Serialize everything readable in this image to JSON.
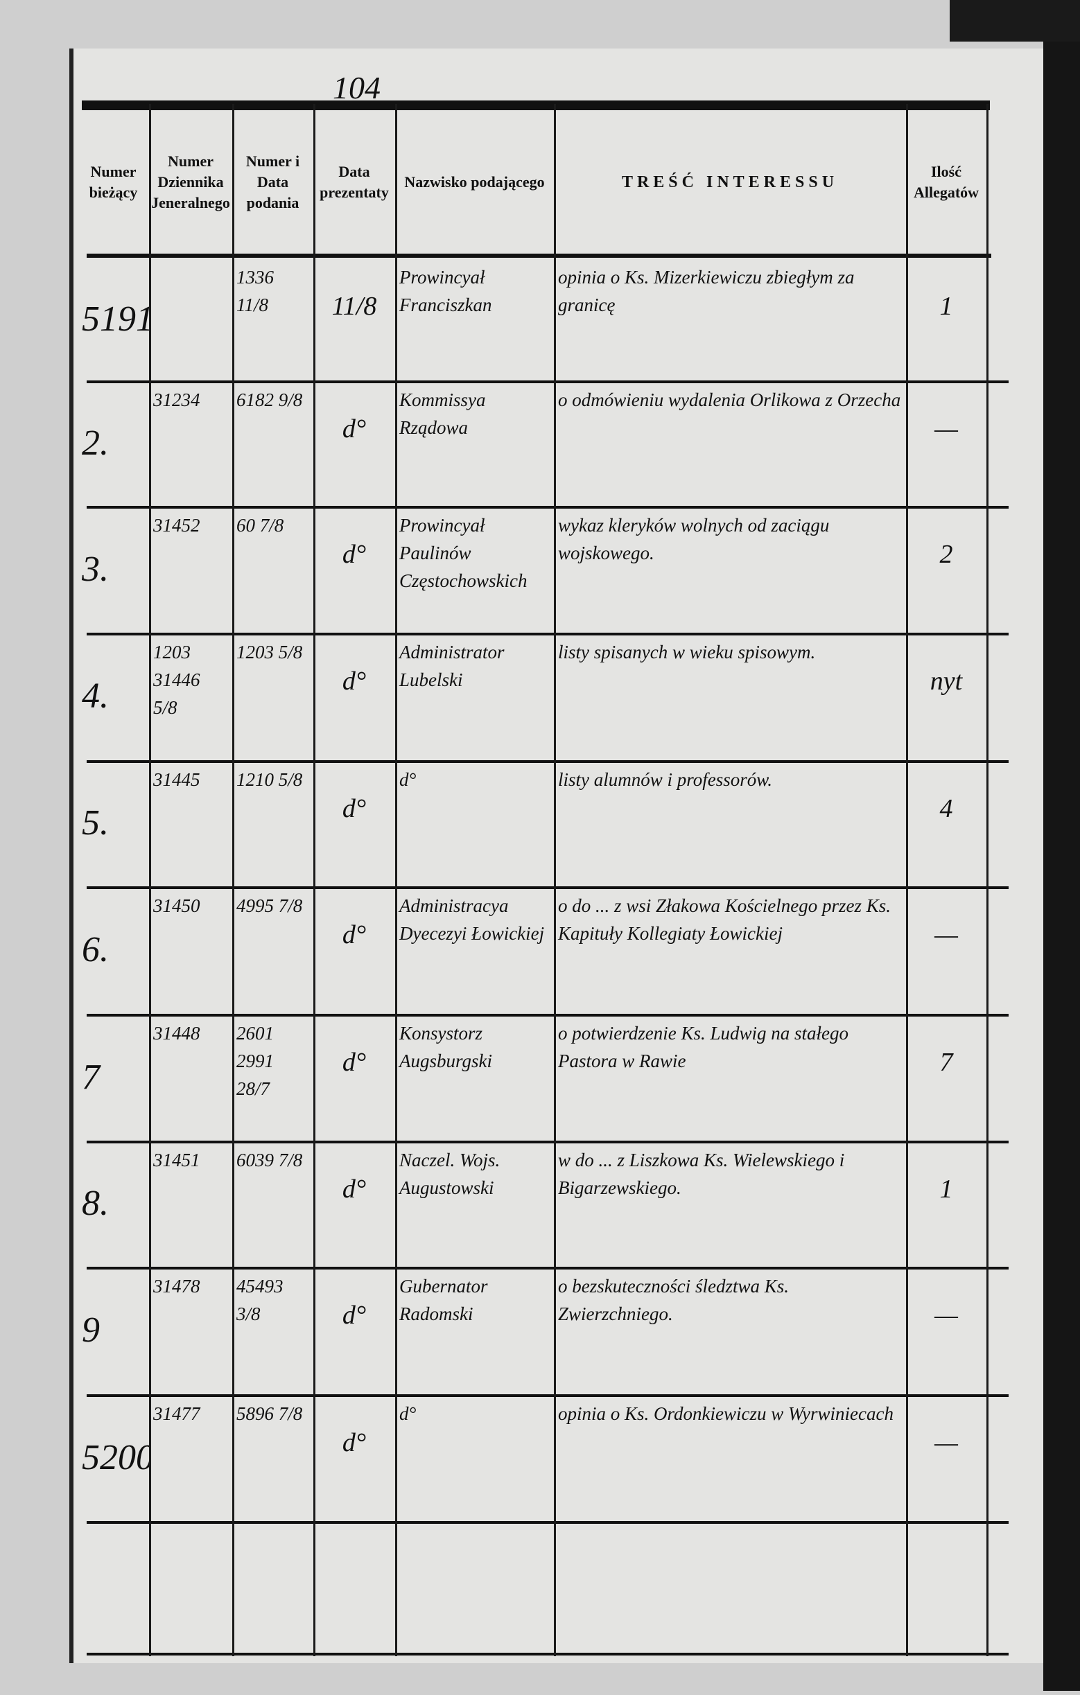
{
  "page_number": "104",
  "headers": [
    "Numer bieżący",
    "Numer Dziennika Jeneralnego",
    "Numer i Data podania",
    "Data prezentaty",
    "Nazwisko podającego",
    "TREŚĆ INTERESSU",
    "Ilość Allegatów"
  ],
  "rows": [
    {
      "numer": "5191.",
      "dziennik": "",
      "podanie": "1336 11/8",
      "prezentata": "11/8",
      "nazwisko": "Prowincyał Franciszkan",
      "tresc": "opinia o Ks. Mizerkiewiczu zbiegłym za granicę",
      "allegaty": "1"
    },
    {
      "numer": "2.",
      "dziennik": "31234",
      "podanie": "6182 9/8",
      "prezentata": "d°",
      "nazwisko": "Kommissya Rządowa",
      "tresc": "o odmówieniu wydalenia Orlikowa z Orzecha",
      "allegaty": "—"
    },
    {
      "numer": "3.",
      "dziennik": "31452",
      "podanie": "60 7/8",
      "prezentata": "d°",
      "nazwisko": "Prowincyał Paulinów Częstochowskich",
      "tresc": "wykaz kleryków wolnych od zaciągu wojskowego.",
      "allegaty": "2"
    },
    {
      "numer": "4.",
      "dziennik": "1203 31446 5/8",
      "podanie": "1203 5/8",
      "prezentata": "d°",
      "nazwisko": "Administrator Lubelski",
      "tresc": "listy spisanych w wieku spisowym.",
      "allegaty": "nyt"
    },
    {
      "numer": "5.",
      "dziennik": "31445",
      "podanie": "1210 5/8",
      "prezentata": "d°",
      "nazwisko": "d°",
      "tresc": "listy alumnów i professorów.",
      "allegaty": "4"
    },
    {
      "numer": "6.",
      "dziennik": "31450",
      "podanie": "4995 7/8",
      "prezentata": "d°",
      "nazwisko": "Administracya Dyecezyi Łowickiej",
      "tresc": "o do ... z wsi Złakowa Kościelnego przez Ks. Kapituły Kollegiaty Łowickiej",
      "allegaty": "—"
    },
    {
      "numer": "7",
      "dziennik": "31448",
      "podanie": "2601 2991 28/7",
      "prezentata": "d°",
      "nazwisko": "Konsystorz Augsburgski",
      "tresc": "o potwierdzenie Ks. Ludwig na stałego Pastora w Rawie",
      "allegaty": "7"
    },
    {
      "numer": "8.",
      "dziennik": "31451",
      "podanie": "6039 7/8",
      "prezentata": "d°",
      "nazwisko": "Naczel. Wojs. Augustowski",
      "tresc": "w do ... z Liszkowa Ks. Wielewskiego i Bigarzewskiego.",
      "allegaty": "1"
    },
    {
      "numer": "9",
      "dziennik": "31478",
      "podanie": "45493 3/8",
      "prezentata": "d°",
      "nazwisko": "Gubernator Radomski",
      "tresc": "o bezskuteczności śledztwa Ks. Zwierzchniego.",
      "allegaty": "—"
    },
    {
      "numer": "5200.",
      "dziennik": "31477",
      "podanie": "5896 7/8",
      "prezentata": "d°",
      "nazwisko": "d°",
      "tresc": "opinia o Ks. Ordonkiewiczu w Wyrwiniecach",
      "allegaty": "—"
    }
  ]
}
